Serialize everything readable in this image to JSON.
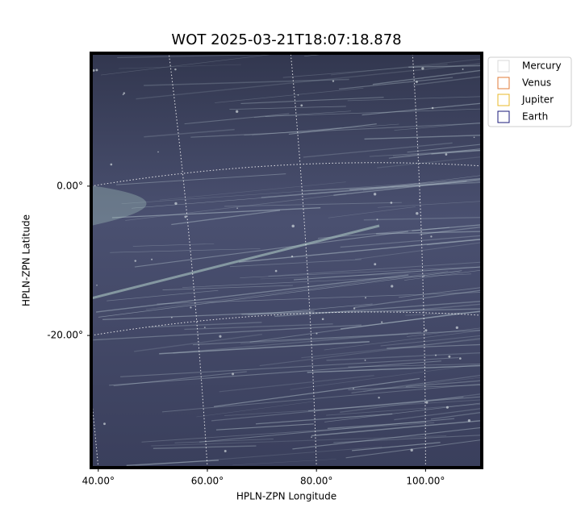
{
  "chart_data": {
    "type": "image",
    "title": "WOT 2025-03-21T18:07:18.878",
    "xlabel": "HPLN-ZPN Longitude",
    "ylabel": "HPLN-ZPN Latitude",
    "xlim": [
      38.7,
      110.3
    ],
    "ylim": [
      -37.7,
      17.8
    ],
    "xticks": [
      {
        "value": 40,
        "label": "40.00°"
      },
      {
        "value": 60,
        "label": "60.00°"
      },
      {
        "value": 80,
        "label": "80.00°"
      },
      {
        "value": 100,
        "label": "100.00°"
      }
    ],
    "yticks": [
      {
        "value": 0,
        "label": "0.00°"
      },
      {
        "value": -20,
        "label": "-20.00°"
      }
    ],
    "grid": true,
    "legend": "outside upper right",
    "series": [
      {
        "name": "Mercury",
        "color": "#d8d8d8"
      },
      {
        "name": "Venus",
        "color": "#e07b39"
      },
      {
        "name": "Jupiter",
        "color": "#e8b828"
      },
      {
        "name": "Earth",
        "color": "#1a1a7a"
      }
    ]
  }
}
